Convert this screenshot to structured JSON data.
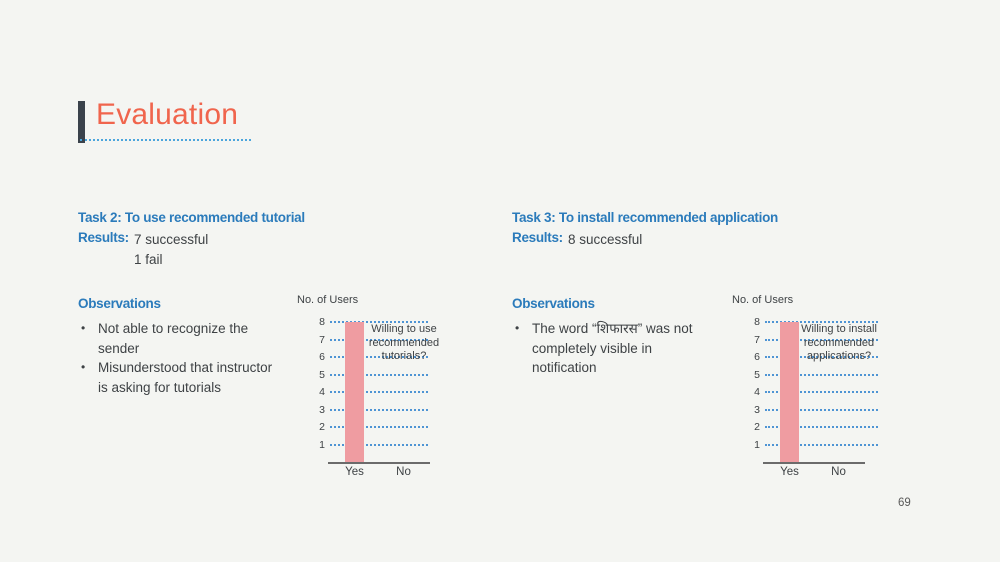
{
  "slide": {
    "title": "Evaluation",
    "page_number": "69"
  },
  "colors": {
    "background": "#F4F5F2",
    "accent_coral": "#F0654D",
    "title_bar_dark": "#3A424B",
    "underline_blue": "#4BA5DC",
    "heading_blue": "#2B7BBB",
    "body_text": "#3E4245",
    "grid_blue": "#4E94D4",
    "axis_gray": "#6B6B6B",
    "bar_pink": "#EF9CA1"
  },
  "left_panel": {
    "task_heading": "Task 2: To use recommended tutorial",
    "results_label": "Results:",
    "results_lines": [
      "7 successful",
      "1 fail"
    ],
    "observations_heading": "Observations",
    "observations": [
      "Not able to recognize the sender",
      "Misunderstood that instructor is asking for tutorials"
    ]
  },
  "right_panel": {
    "task_heading": "Task 3: To install recommended application",
    "results_label": "Results:",
    "results_lines": [
      "8 successful"
    ],
    "observations_heading": "Observations",
    "observations": [
      "The word “शिफारस” was not completely visible in notification"
    ]
  },
  "chart_data": [
    {
      "type": "bar",
      "ylabel": "No. of Users",
      "xlabel": "",
      "categories": [
        "Yes",
        "No"
      ],
      "values": [
        8,
        0
      ],
      "yticks": [
        1,
        2,
        3,
        4,
        5,
        6,
        7,
        8
      ],
      "ylim": [
        0,
        8
      ],
      "grid": true,
      "legend": false,
      "annotation": "Willing to use recommended tutorials?",
      "bar_color": "#EF9CA1"
    },
    {
      "type": "bar",
      "ylabel": "No. of Users",
      "xlabel": "",
      "categories": [
        "Yes",
        "No"
      ],
      "values": [
        8,
        0
      ],
      "yticks": [
        1,
        2,
        3,
        4,
        5,
        6,
        7,
        8
      ],
      "ylim": [
        0,
        8
      ],
      "grid": true,
      "legend": false,
      "annotation": "Willing to install recommended applications?",
      "bar_color": "#EF9CA1"
    }
  ]
}
